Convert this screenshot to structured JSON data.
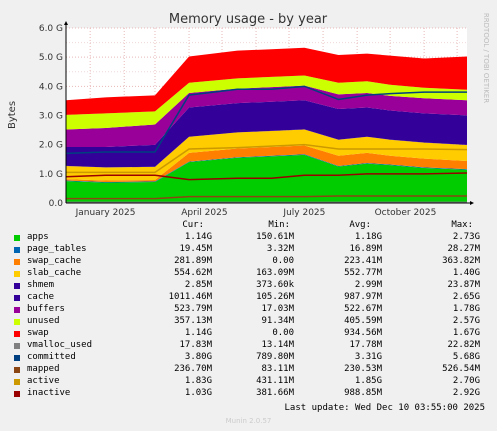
{
  "chart_data": {
    "type": "area",
    "title": "Memory usage - by year",
    "ylabel": "Bytes",
    "ylim": [
      0,
      6000000000
    ],
    "y_ticks": [
      "0.0",
      "1.0 G",
      "2.0 G",
      "3.0 G",
      "4.0 G",
      "5.0 G",
      "6.0 G"
    ],
    "x_tick_labels": [
      "January 2025",
      "April 2025",
      "July 2025",
      "October 2025"
    ],
    "x_range": [
      "2024-12-10",
      "2025-12-10"
    ],
    "x_ticks": [
      "2025-01-01",
      "2025-04-01",
      "2025-07-01",
      "2025-10-01"
    ],
    "x": [
      "2024-12-10",
      "2025-01-15",
      "2025-03-01",
      "2025-04-01",
      "2025-05-15",
      "2025-06-15",
      "2025-07-15",
      "2025-08-15",
      "2025-09-10",
      "2025-10-01",
      "2025-11-01",
      "2025-12-10"
    ],
    "grid": true,
    "side_text": "RRDTOOL / TOBI OETIKER",
    "columns": [
      "Cur:",
      "Min:",
      "Avg:",
      "Max:"
    ],
    "series": [
      {
        "name": "apps",
        "color": "#00cc00",
        "kind": "area",
        "values": [
          0.75,
          0.7,
          0.72,
          1.4,
          1.55,
          1.6,
          1.65,
          1.25,
          1.35,
          1.3,
          1.2,
          1.14
        ],
        "cur": "1.14G",
        "min": "150.61M",
        "avg": "1.18G",
        "max": "2.73G"
      },
      {
        "name": "page_tables",
        "color": "#0066b3",
        "kind": "area",
        "values": [
          0.02,
          0.02,
          0.02,
          0.02,
          0.02,
          0.02,
          0.02,
          0.02,
          0.02,
          0.02,
          0.02,
          0.02
        ],
        "cur": "19.45M",
        "min": "3.32M",
        "avg": "16.89M",
        "max": "28.27M"
      },
      {
        "name": "swap_cache",
        "color": "#ff8000",
        "kind": "area",
        "values": [
          0.05,
          0.05,
          0.05,
          0.3,
          0.3,
          0.3,
          0.3,
          0.35,
          0.35,
          0.3,
          0.3,
          0.28
        ],
        "cur": "281.89M",
        "min": "0.00",
        "avg": "223.41M",
        "max": "363.82M"
      },
      {
        "name": "slab_cache",
        "color": "#ffcc00",
        "kind": "area",
        "values": [
          0.45,
          0.45,
          0.45,
          0.55,
          0.55,
          0.55,
          0.55,
          0.55,
          0.55,
          0.55,
          0.55,
          0.55
        ],
        "cur": "554.62M",
        "min": "163.09M",
        "avg": "552.77M",
        "max": "1.40G"
      },
      {
        "name": "shmem",
        "color": "#330099",
        "kind": "area",
        "values": [
          0.002,
          0.002,
          0.002,
          0.003,
          0.003,
          0.003,
          0.003,
          0.003,
          0.003,
          0.003,
          0.003,
          0.003
        ],
        "cur": "2.85M",
        "min": "373.60k",
        "avg": "2.99M",
        "max": "23.87M"
      },
      {
        "name": "cache",
        "color": "#330099",
        "kind": "area",
        "values": [
          0.65,
          0.7,
          0.75,
          1.0,
          1.0,
          1.0,
          1.0,
          1.05,
          1.0,
          1.0,
          1.0,
          1.01
        ],
        "cur": "1011.46M",
        "min": "105.26M",
        "avg": "987.97M",
        "max": "2.65G"
      },
      {
        "name": "buffers",
        "color": "#990099",
        "kind": "area",
        "values": [
          0.6,
          0.65,
          0.7,
          0.5,
          0.5,
          0.5,
          0.5,
          0.5,
          0.5,
          0.5,
          0.52,
          0.52
        ],
        "cur": "523.79M",
        "min": "17.03M",
        "avg": "522.67M",
        "max": "1.78G"
      },
      {
        "name": "unused",
        "color": "#ccff00",
        "kind": "area",
        "values": [
          0.5,
          0.5,
          0.45,
          0.35,
          0.35,
          0.35,
          0.35,
          0.4,
          0.4,
          0.38,
          0.36,
          0.36
        ],
        "cur": "357.13M",
        "min": "91.34M",
        "avg": "405.59M",
        "max": "2.57G"
      },
      {
        "name": "swap",
        "color": "#ff0000",
        "kind": "area",
        "values": [
          0.5,
          0.55,
          0.55,
          0.9,
          0.95,
          0.95,
          0.95,
          0.95,
          0.95,
          1.0,
          1.0,
          1.14
        ],
        "cur": "1.14G",
        "min": "0.00",
        "avg": "934.56M",
        "max": "1.67G"
      },
      {
        "name": "vmalloc_used",
        "color": "#808080",
        "kind": "line",
        "values": [
          0.02,
          0.02,
          0.02,
          0.02,
          0.02,
          0.02,
          0.02,
          0.02,
          0.02,
          0.02,
          0.02,
          0.02
        ],
        "cur": "17.83M",
        "min": "13.14M",
        "avg": "17.78M",
        "max": "22.82M"
      },
      {
        "name": "committed",
        "color": "#004080",
        "kind": "line",
        "values": [
          1.7,
          1.75,
          1.75,
          3.7,
          3.9,
          3.9,
          4.0,
          3.55,
          3.7,
          3.75,
          3.8,
          3.8
        ],
        "cur": "3.80G",
        "min": "789.80M",
        "avg": "3.31G",
        "max": "5.68G"
      },
      {
        "name": "mapped",
        "color": "#8b4513",
        "kind": "line",
        "values": [
          0.15,
          0.15,
          0.15,
          0.22,
          0.22,
          0.22,
          0.22,
          0.24,
          0.24,
          0.24,
          0.24,
          0.24
        ],
        "cur": "236.70M",
        "min": "83.11M",
        "avg": "230.53M",
        "max": "526.54M"
      },
      {
        "name": "active",
        "color": "#cc9900",
        "kind": "line",
        "values": [
          1.05,
          1.05,
          1.05,
          1.85,
          1.9,
          1.95,
          2.0,
          1.85,
          1.85,
          1.85,
          1.85,
          1.83
        ],
        "cur": "1.83G",
        "min": "431.11M",
        "avg": "1.85G",
        "max": "2.70G"
      },
      {
        "name": "inactive",
        "color": "#990000",
        "kind": "line",
        "values": [
          0.9,
          0.95,
          0.95,
          0.8,
          0.85,
          0.85,
          0.95,
          0.95,
          1.0,
          1.0,
          1.0,
          1.03
        ],
        "cur": "1.03G",
        "min": "381.66M",
        "avg": "988.85M",
        "max": "2.92G"
      }
    ]
  },
  "footer": {
    "last_update": "Last update: Wed Dec 10 03:55:00 2025",
    "munin": "Munin 2.0.57"
  }
}
